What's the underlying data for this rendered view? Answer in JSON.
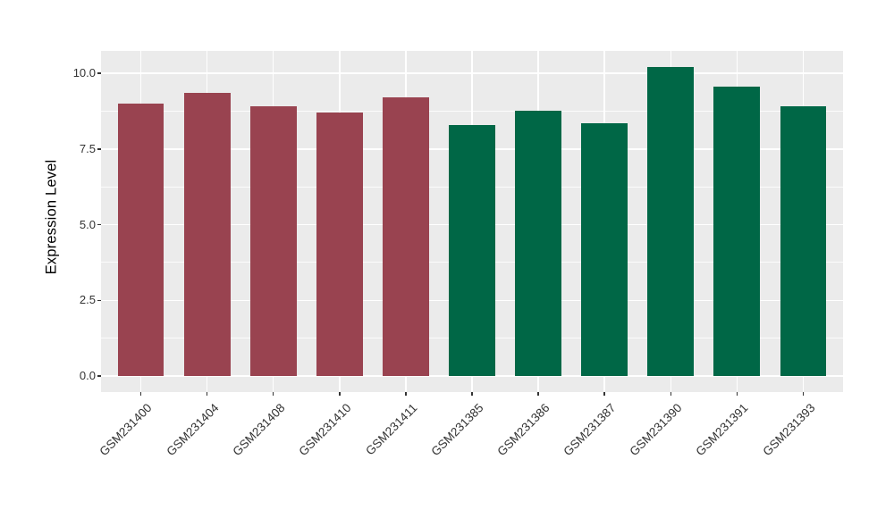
{
  "figure": {
    "background": "#FFFFFF",
    "panel_background": "#EBEBEB",
    "grid_color": "#FFFFFF",
    "tick_color": "#333333",
    "tick_label_color": "#333333",
    "axis_title_color": "#000000"
  },
  "chart_data": {
    "type": "bar",
    "title": "",
    "xlabel": "",
    "ylabel": "Expression Level",
    "categories": [
      "GSM231400",
      "GSM231404",
      "GSM231408",
      "GSM231410",
      "GSM231411",
      "GSM231385",
      "GSM231386",
      "GSM231387",
      "GSM231390",
      "GSM231391",
      "GSM231393"
    ],
    "values": [
      9.0,
      9.35,
      8.9,
      8.7,
      9.2,
      8.3,
      8.75,
      8.35,
      10.2,
      9.55,
      8.9
    ],
    "bar_colors": [
      "#994350",
      "#994350",
      "#994350",
      "#994350",
      "#994350",
      "#006746",
      "#006746",
      "#006746",
      "#006746",
      "#006746",
      "#006746"
    ],
    "group_colors": {
      "left_group": "#994350",
      "right_group": "#006746"
    },
    "y_ticks": {
      "values": [
        0.0,
        2.5,
        5.0,
        7.5,
        10.0
      ],
      "labels": [
        "0.0",
        "2.5",
        "5.0",
        "7.5",
        "10.0"
      ]
    },
    "y_minor_ticks": [
      1.25,
      3.75,
      6.25,
      8.75
    ],
    "ylim": [
      -0.53,
      10.74
    ],
    "x_tick_rotation_deg": 45,
    "grid": "white major+minor horizontal lines, white major vertical lines at category centers",
    "legend": "none"
  }
}
